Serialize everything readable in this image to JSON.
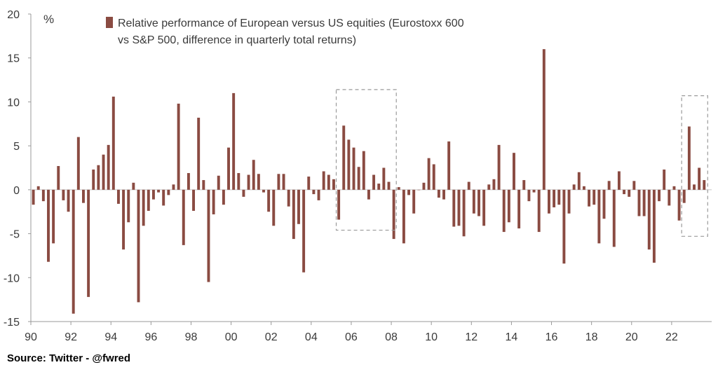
{
  "chart_data": {
    "type": "bar",
    "title": "",
    "unit_label": "%",
    "legend": {
      "label_line1": "Relative performance of European versus US equities (Eurostoxx 600",
      "label_line2": "vs S&P 500, difference in quarterly total returns)",
      "placement": "top-left"
    },
    "color": "#8a4b42",
    "grid": false,
    "xlim": [
      1990,
      2024
    ],
    "ylim": [
      -15,
      20
    ],
    "x_ticks": [
      1990,
      1992,
      1994,
      1996,
      1998,
      2000,
      2002,
      2004,
      2006,
      2008,
      2010,
      2012,
      2014,
      2016,
      2018,
      2020,
      2022
    ],
    "x_tick_labels": [
      "90",
      "92",
      "94",
      "96",
      "98",
      "00",
      "02",
      "04",
      "06",
      "08",
      "10",
      "12",
      "14",
      "16",
      "18",
      "20",
      "22"
    ],
    "y_ticks": [
      -15,
      -10,
      -5,
      0,
      5,
      10,
      15,
      20
    ],
    "y_tick_labels": [
      "-15",
      "-10",
      "-5",
      "0",
      "5",
      "10",
      "15",
      "20"
    ],
    "highlight_boxes": [
      {
        "x_start": 2005.25,
        "x_end": 2008.25,
        "y_start": -4.6,
        "y_end": 11.4
      },
      {
        "x_start": 2022.5,
        "x_end": 2023.8,
        "y_start": -5.3,
        "y_end": 10.7
      }
    ],
    "series": [
      {
        "x_start": 1990.0,
        "x_step": 0.25,
        "values": [
          -1.7,
          0.4,
          -1.3,
          -8.2,
          -6.1,
          2.7,
          -1.2,
          -2.5,
          -14.1,
          6.0,
          -1.5,
          -12.2,
          2.3,
          2.8,
          4.0,
          5.1,
          10.6,
          -1.6,
          -6.8,
          -3.7,
          0.8,
          -12.8,
          -4.1,
          -2.4,
          -1.1,
          -0.3,
          -1.8,
          -0.6,
          0.6,
          9.8,
          -6.3,
          1.9,
          -2.4,
          8.2,
          1.1,
          -10.5,
          -2.8,
          1.6,
          -1.7,
          4.8,
          11.0,
          1.9,
          -0.8,
          1.7,
          3.4,
          1.8,
          -0.3,
          -2.5,
          -4.1,
          1.8,
          1.8,
          -1.9,
          -5.6,
          -3.9,
          -9.4,
          1.5,
          -0.5,
          -1.2,
          2.1,
          1.7,
          1.2,
          -3.4,
          7.3,
          5.7,
          4.8,
          2.6,
          4.4,
          -1.1,
          1.7,
          0.7,
          2.5,
          0.9,
          -5.6,
          0.3,
          -6.1,
          -0.6,
          -2.7,
          0.0,
          0.8,
          3.6,
          2.9,
          -0.9,
          -1.1,
          5.5,
          -4.2,
          -4.1,
          -5.3,
          0.9,
          -2.7,
          -3.0,
          -4.1,
          0.6,
          1.2,
          5.1,
          -4.8,
          -3.7,
          4.2,
          -4.4,
          1.1,
          -1.3,
          -0.3,
          -4.8,
          16.0,
          -2.7,
          -2.0,
          -1.7,
          -8.4,
          -2.7,
          0.6,
          2.0,
          0.4,
          -1.9,
          -1.7,
          -6.1,
          -3.3,
          1.0,
          -6.5,
          2.1,
          -0.5,
          -0.8,
          1.0,
          -3.0,
          -3.0,
          -6.8,
          -8.3,
          -1.3,
          2.3,
          -1.8,
          0.4,
          -3.5,
          -1.5,
          7.2,
          0.6,
          2.5,
          1.1
        ]
      }
    ]
  },
  "source_text": "Source: Twitter - @fwred"
}
